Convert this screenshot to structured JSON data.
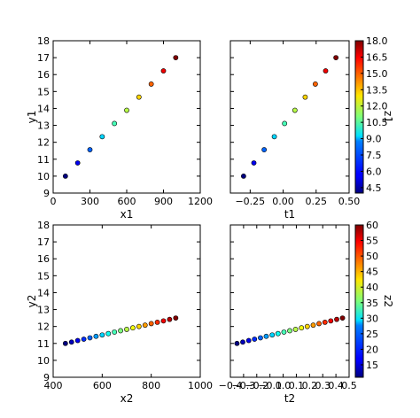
{
  "chart_data": [
    {
      "type": "scatter",
      "xlabel": "x1",
      "ylabel": "y1",
      "xlim": [
        0,
        1200
      ],
      "ylim": [
        9,
        18
      ],
      "xticks": [
        0,
        300,
        600,
        900,
        1200
      ],
      "yticks": [
        9,
        10,
        11,
        12,
        13,
        14,
        15,
        16,
        17,
        18
      ],
      "xtick_labels": [
        "0",
        "300",
        "600",
        "900",
        "1200"
      ],
      "ytick_labels": [
        "9",
        "10",
        "11",
        "12",
        "13",
        "14",
        "15",
        "16",
        "17",
        "18"
      ],
      "x": [
        100,
        200,
        300,
        400,
        500,
        600,
        700,
        800,
        900,
        1000
      ],
      "y": [
        10,
        10.78,
        11.56,
        12.33,
        13.11,
        13.89,
        14.67,
        15.44,
        16.22,
        17
      ],
      "color_values": [
        4,
        5.56,
        7.11,
        8.67,
        10.22,
        11.78,
        13.33,
        14.89,
        16.44,
        18
      ],
      "color_scale": [
        4,
        18
      ]
    },
    {
      "type": "scatter",
      "xlabel": "t1",
      "ylabel": "",
      "xlim": [
        -0.4,
        0.5
      ],
      "ylim": [
        9,
        18
      ],
      "xticks": [
        -0.25,
        0,
        0.25,
        0.5
      ],
      "yticks": [
        9,
        10,
        11,
        12,
        13,
        14,
        15,
        16,
        17,
        18
      ],
      "xtick_labels": [
        "−0.25",
        "0.00",
        "0.25",
        "0.50"
      ],
      "ytick_labels": [],
      "x": [
        -0.3,
        -0.222,
        -0.144,
        -0.067,
        0.011,
        0.089,
        0.167,
        0.244,
        0.322,
        0.4
      ],
      "y": [
        10,
        10.78,
        11.56,
        12.33,
        13.11,
        13.89,
        14.67,
        15.44,
        16.22,
        17
      ],
      "color_values": [
        4,
        5.56,
        7.11,
        8.67,
        10.22,
        11.78,
        13.33,
        14.89,
        16.44,
        18
      ],
      "color_scale": [
        4,
        18
      ],
      "colorbar": {
        "label": "z1",
        "range": [
          4,
          18
        ],
        "ticks": [
          4.5,
          6,
          7.5,
          9,
          10.5,
          12,
          13.5,
          15,
          16.5,
          18
        ],
        "tick_labels": [
          "4.5",
          "6.0",
          "7.5",
          "9.0",
          "10.5",
          "12.0",
          "13.5",
          "15.0",
          "16.5",
          "18.0"
        ]
      }
    },
    {
      "type": "scatter",
      "xlabel": "x2",
      "ylabel": "y2",
      "xlim": [
        400,
        1000
      ],
      "ylim": [
        9,
        18
      ],
      "xticks": [
        400,
        600,
        800,
        1000
      ],
      "yticks": [
        9,
        10,
        11,
        12,
        13,
        14,
        15,
        16,
        17,
        18
      ],
      "xtick_labels": [
        "400",
        "600",
        "800",
        "1000"
      ],
      "ytick_labels": [
        "9",
        "10",
        "11",
        "12",
        "13",
        "14",
        "15",
        "16",
        "17",
        "18"
      ],
      "x": [
        450,
        475,
        500,
        525,
        550,
        575,
        600,
        625,
        650,
        675,
        700,
        725,
        750,
        775,
        800,
        825,
        850,
        875,
        900
      ],
      "y": [
        11,
        11.08,
        11.17,
        11.25,
        11.33,
        11.42,
        11.5,
        11.58,
        11.67,
        11.75,
        11.83,
        11.92,
        12,
        12.08,
        12.17,
        12.25,
        12.33,
        12.42,
        12.5
      ],
      "color_values": [
        11,
        13.72,
        16.44,
        19.17,
        21.89,
        24.61,
        27.33,
        30.06,
        32.78,
        35.5,
        38.22,
        40.94,
        43.67,
        46.39,
        49.11,
        51.83,
        54.56,
        57.28,
        60
      ],
      "color_scale": [
        11,
        60
      ]
    },
    {
      "type": "scatter",
      "xlabel": "t2",
      "ylabel": "",
      "xlim": [
        -0.4,
        0.5
      ],
      "ylim": [
        9,
        18
      ],
      "xticks": [
        -0.4,
        -0.3,
        -0.2,
        -0.1,
        0,
        0.1,
        0.2,
        0.3,
        0.4,
        0.5
      ],
      "yticks": [
        9,
        10,
        11,
        12,
        13,
        14,
        15,
        16,
        17,
        18
      ],
      "xtick_labels": [
        "−0.4",
        "−0.3",
        "−0.2",
        "−0.1",
        "0.0",
        "0.1",
        "0.2",
        "0.3",
        "0.4",
        "0.5"
      ],
      "ytick_labels": [],
      "x": [
        -0.35,
        -0.306,
        -0.261,
        -0.217,
        -0.172,
        -0.128,
        -0.083,
        -0.039,
        0.006,
        0.05,
        0.094,
        0.139,
        0.183,
        0.228,
        0.272,
        0.317,
        0.361,
        0.406,
        0.45
      ],
      "y": [
        11,
        11.08,
        11.17,
        11.25,
        11.33,
        11.42,
        11.5,
        11.58,
        11.67,
        11.75,
        11.83,
        11.92,
        12,
        12.08,
        12.17,
        12.25,
        12.33,
        12.42,
        12.5
      ],
      "color_values": [
        11,
        13.72,
        16.44,
        19.17,
        21.89,
        24.61,
        27.33,
        30.06,
        32.78,
        35.5,
        38.22,
        40.94,
        43.67,
        46.39,
        49.11,
        51.83,
        54.56,
        57.28,
        60
      ],
      "color_scale": [
        11,
        60
      ],
      "colorbar": {
        "label": "z2",
        "range": [
          11,
          60
        ],
        "ticks": [
          15,
          20,
          25,
          30,
          35,
          40,
          45,
          50,
          55,
          60
        ],
        "tick_labels": [
          "15",
          "20",
          "25",
          "30",
          "35",
          "40",
          "45",
          "50",
          "55",
          "60"
        ]
      }
    }
  ]
}
